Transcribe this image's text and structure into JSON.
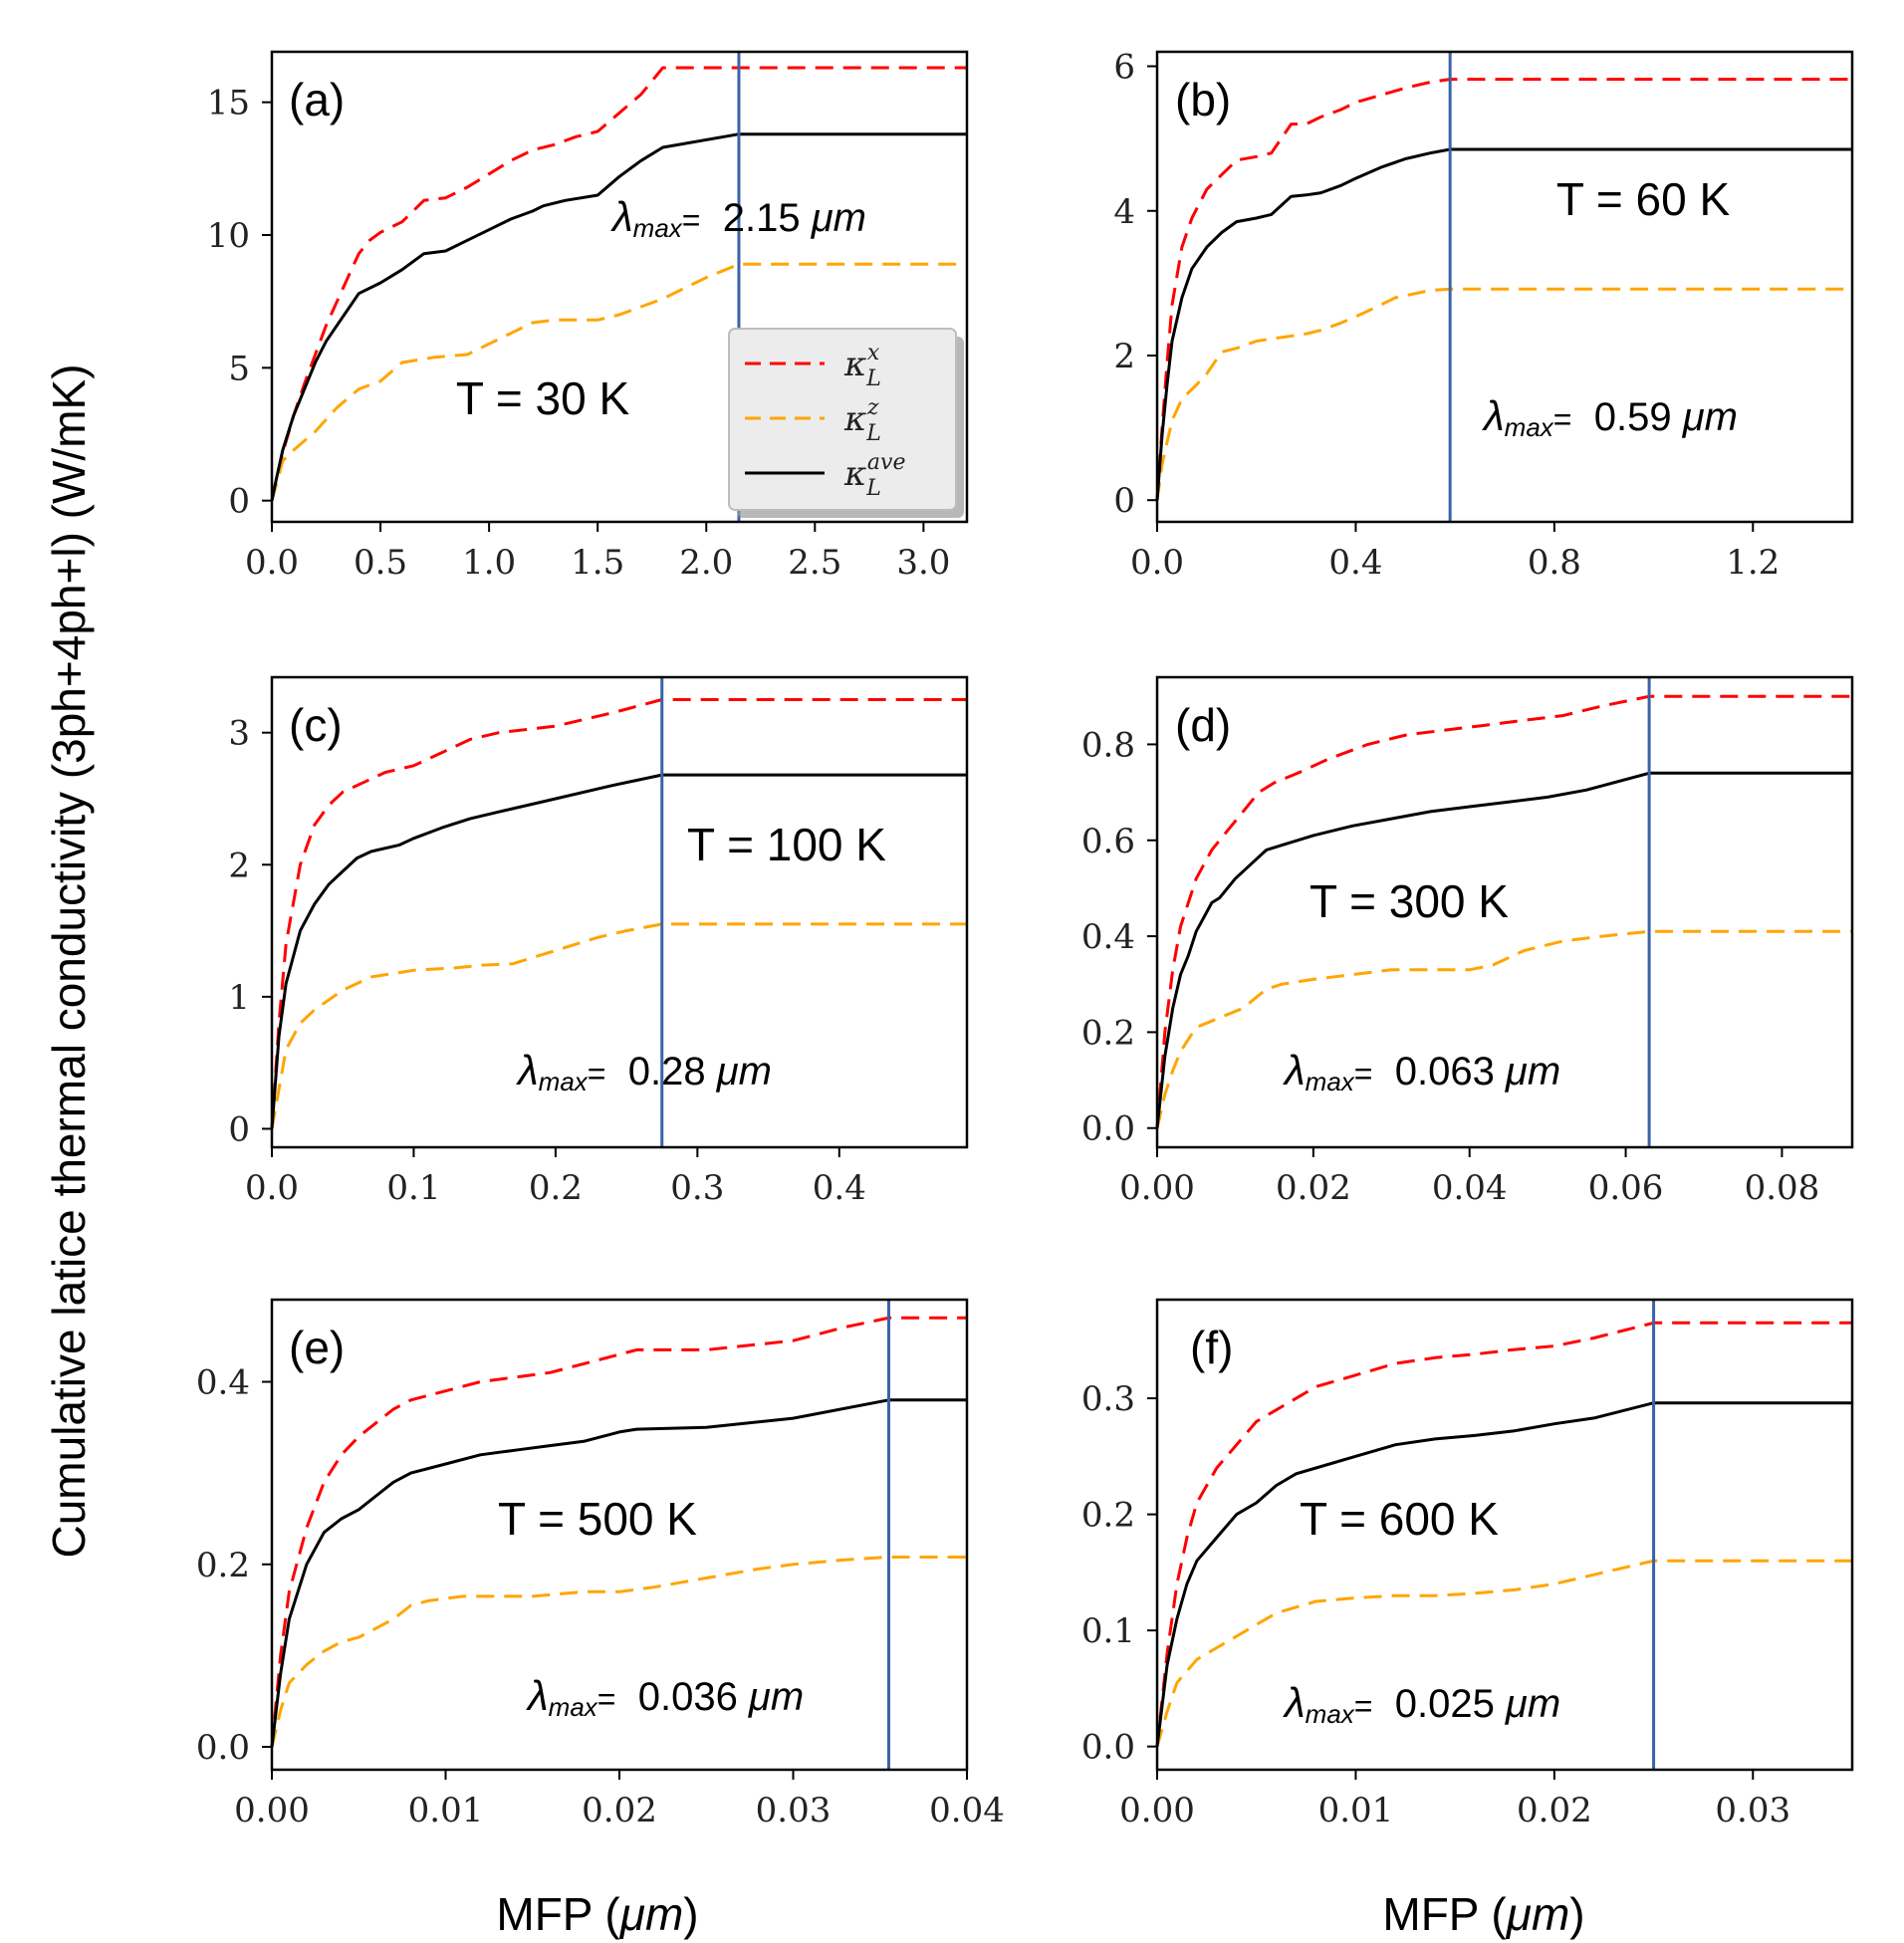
{
  "figure": {
    "ylabel": "Cumulative latice thermal conductivity (3ph+4ph+l) (W/mK)",
    "xlabel_left": "MFP (μm)",
    "xlabel_right": "MFP (μm)",
    "lambda_label": "λmax="
  },
  "legend": {
    "entries": [
      {
        "label": "κLx",
        "color": "#ff0000",
        "style": "dashed"
      },
      {
        "label": "κLz",
        "color": "#ffa500",
        "style": "dashed"
      },
      {
        "label": "κLave",
        "color": "#000000",
        "style": "solid"
      }
    ]
  },
  "colors": {
    "kx": "#ff0000",
    "kz": "#ffa500",
    "kave": "#000000",
    "vline": "#3a63a8"
  },
  "chart_data": [
    {
      "type": "line",
      "panel": "(a)",
      "temperature": "T = 30 K",
      "lambda_max": "2.15 μm",
      "vline_x": 2.15,
      "xlim": [
        0,
        3.2
      ],
      "ylim": [
        -0.8,
        16.9
      ],
      "xticks": [
        0,
        0.5,
        1,
        1.5,
        2,
        2.5,
        3
      ],
      "xtick_labels": [
        "0.0",
        "0.5",
        "1.0",
        "1.5",
        "2.0",
        "2.5",
        "3.0"
      ],
      "yticks": [
        0,
        5,
        10,
        15
      ],
      "ytick_labels": [
        "0",
        "5",
        "10",
        "15"
      ],
      "series": [
        {
          "name": "κLx",
          "x": [
            0,
            0.02,
            0.05,
            0.1,
            0.15,
            0.2,
            0.25,
            0.3,
            0.35,
            0.4,
            0.45,
            0.5,
            0.6,
            0.7,
            0.8,
            0.9,
            1.0,
            1.1,
            1.2,
            1.3,
            1.4,
            1.5,
            1.6,
            1.7,
            1.8,
            2.15,
            3.2
          ],
          "y": [
            0,
            0.8,
            1.8,
            3.2,
            4.4,
            5.5,
            6.6,
            7.5,
            8.4,
            9.3,
            9.8,
            10.1,
            10.5,
            11.3,
            11.4,
            11.8,
            12.3,
            12.8,
            13.2,
            13.4,
            13.7,
            13.9,
            14.6,
            15.3,
            16.3,
            16.3,
            16.3
          ]
        },
        {
          "name": "κLz",
          "x": [
            0,
            0.02,
            0.05,
            0.1,
            0.2,
            0.3,
            0.4,
            0.5,
            0.6,
            0.75,
            0.9,
            1.0,
            1.1,
            1.2,
            1.3,
            1.5,
            1.6,
            1.7,
            1.8,
            1.9,
            2.0,
            2.15,
            3.2
          ],
          "y": [
            0,
            0.6,
            1.5,
            1.9,
            2.6,
            3.5,
            4.2,
            4.5,
            5.2,
            5.4,
            5.5,
            5.9,
            6.3,
            6.7,
            6.8,
            6.8,
            7.0,
            7.3,
            7.6,
            8.0,
            8.4,
            8.9,
            8.9
          ]
        },
        {
          "name": "κLave",
          "x": [
            0,
            0.02,
            0.05,
            0.1,
            0.15,
            0.2,
            0.25,
            0.3,
            0.4,
            0.5,
            0.6,
            0.7,
            0.8,
            0.9,
            1.0,
            1.1,
            1.2,
            1.25,
            1.35,
            1.5,
            1.6,
            1.7,
            1.8,
            2.15,
            3.2
          ],
          "y": [
            0,
            0.8,
            1.9,
            3.2,
            4.2,
            5.2,
            6.0,
            6.6,
            7.8,
            8.2,
            8.7,
            9.3,
            9.4,
            9.8,
            10.2,
            10.6,
            10.9,
            11.1,
            11.3,
            11.5,
            12.2,
            12.8,
            13.3,
            13.8,
            13.8
          ]
        }
      ]
    },
    {
      "type": "line",
      "panel": "(b)",
      "temperature": "T = 60 K",
      "lambda_max": "0.59 μm",
      "vline_x": 0.59,
      "xlim": [
        0,
        1.4
      ],
      "ylim": [
        -0.3,
        6.2
      ],
      "xticks": [
        0,
        0.4,
        0.8,
        1.2
      ],
      "xtick_labels": [
        "0.0",
        "0.4",
        "0.8",
        "1.2"
      ],
      "yticks": [
        0,
        2,
        4,
        6
      ],
      "ytick_labels": [
        "0",
        "2",
        "4",
        "6"
      ],
      "series": [
        {
          "name": "κLx",
          "x": [
            0,
            0.01,
            0.02,
            0.03,
            0.05,
            0.07,
            0.1,
            0.13,
            0.16,
            0.2,
            0.23,
            0.27,
            0.3,
            0.33,
            0.37,
            0.4,
            0.45,
            0.5,
            0.55,
            0.59,
            1.4
          ],
          "y": [
            0,
            1.0,
            1.9,
            2.7,
            3.5,
            3.9,
            4.3,
            4.5,
            4.7,
            4.75,
            4.8,
            5.2,
            5.2,
            5.3,
            5.4,
            5.5,
            5.6,
            5.7,
            5.78,
            5.82,
            5.82
          ]
        },
        {
          "name": "κLz",
          "x": [
            0,
            0.01,
            0.02,
            0.03,
            0.05,
            0.08,
            0.1,
            0.13,
            0.16,
            0.2,
            0.25,
            0.3,
            0.33,
            0.37,
            0.42,
            0.48,
            0.55,
            0.59,
            1.4
          ],
          "y": [
            0,
            0.5,
            0.8,
            1.1,
            1.4,
            1.6,
            1.75,
            2.05,
            2.1,
            2.2,
            2.25,
            2.3,
            2.35,
            2.45,
            2.6,
            2.8,
            2.9,
            2.92,
            2.92
          ]
        },
        {
          "name": "κLave",
          "x": [
            0,
            0.01,
            0.02,
            0.03,
            0.05,
            0.07,
            0.1,
            0.13,
            0.16,
            0.2,
            0.23,
            0.27,
            0.3,
            0.33,
            0.37,
            0.4,
            0.45,
            0.5,
            0.55,
            0.59,
            1.4
          ],
          "y": [
            0,
            0.9,
            1.6,
            2.2,
            2.8,
            3.2,
            3.5,
            3.7,
            3.85,
            3.9,
            3.95,
            4.2,
            4.22,
            4.25,
            4.35,
            4.45,
            4.6,
            4.72,
            4.8,
            4.85,
            4.85
          ]
        }
      ]
    },
    {
      "type": "line",
      "panel": "(c)",
      "temperature": "T = 100 K",
      "lambda_max": "0.28 μm",
      "vline_x": 0.275,
      "xlim": [
        0,
        0.49
      ],
      "ylim": [
        -0.14,
        3.42
      ],
      "xticks": [
        0,
        0.1,
        0.2,
        0.3,
        0.4
      ],
      "xtick_labels": [
        "0.0",
        "0.1",
        "0.2",
        "0.3",
        "0.4"
      ],
      "yticks": [
        0,
        1,
        2,
        3
      ],
      "ytick_labels": [
        "0",
        "1",
        "2",
        "3"
      ],
      "series": [
        {
          "name": "κLx",
          "x": [
            0,
            0.005,
            0.01,
            0.02,
            0.03,
            0.04,
            0.05,
            0.06,
            0.08,
            0.1,
            0.12,
            0.14,
            0.16,
            0.2,
            0.24,
            0.275,
            0.49
          ],
          "y": [
            0,
            0.8,
            1.4,
            2.0,
            2.3,
            2.45,
            2.55,
            2.6,
            2.7,
            2.75,
            2.85,
            2.95,
            3.0,
            3.05,
            3.15,
            3.25,
            3.25
          ]
        },
        {
          "name": "κLz",
          "x": [
            0,
            0.005,
            0.01,
            0.02,
            0.03,
            0.05,
            0.07,
            0.1,
            0.13,
            0.15,
            0.17,
            0.2,
            0.23,
            0.25,
            0.275,
            0.49
          ],
          "y": [
            0,
            0.3,
            0.6,
            0.8,
            0.9,
            1.05,
            1.15,
            1.2,
            1.22,
            1.24,
            1.25,
            1.35,
            1.45,
            1.5,
            1.55,
            1.55
          ]
        },
        {
          "name": "κLave",
          "x": [
            0,
            0.005,
            0.01,
            0.02,
            0.03,
            0.04,
            0.05,
            0.06,
            0.07,
            0.09,
            0.1,
            0.12,
            0.14,
            0.16,
            0.2,
            0.24,
            0.275,
            0.49
          ],
          "y": [
            0,
            0.7,
            1.1,
            1.5,
            1.7,
            1.85,
            1.95,
            2.05,
            2.1,
            2.15,
            2.2,
            2.28,
            2.35,
            2.4,
            2.5,
            2.6,
            2.68,
            2.68
          ]
        }
      ]
    },
    {
      "type": "line",
      "panel": "(d)",
      "temperature": "T = 300 K",
      "lambda_max": "0.063 μm",
      "vline_x": 0.063,
      "xlim": [
        0,
        0.089
      ],
      "ylim": [
        -0.04,
        0.94
      ],
      "xticks": [
        0,
        0.02,
        0.04,
        0.06,
        0.08
      ],
      "xtick_labels": [
        "0.00",
        "0.02",
        "0.04",
        "0.06",
        "0.08"
      ],
      "yticks": [
        0,
        0.2,
        0.4,
        0.6,
        0.8
      ],
      "ytick_labels": [
        "0.0",
        "0.2",
        "0.4",
        "0.6",
        "0.8"
      ],
      "series": [
        {
          "name": "κLx",
          "x": [
            0,
            0.001,
            0.002,
            0.003,
            0.005,
            0.007,
            0.009,
            0.011,
            0.013,
            0.015,
            0.018,
            0.022,
            0.027,
            0.032,
            0.037,
            0.042,
            0.047,
            0.052,
            0.057,
            0.063,
            0.089
          ],
          "y": [
            0,
            0.2,
            0.33,
            0.42,
            0.52,
            0.58,
            0.62,
            0.66,
            0.7,
            0.72,
            0.74,
            0.77,
            0.8,
            0.82,
            0.83,
            0.84,
            0.85,
            0.86,
            0.88,
            0.9,
            0.9
          ]
        },
        {
          "name": "κLz",
          "x": [
            0,
            0.001,
            0.002,
            0.003,
            0.005,
            0.008,
            0.011,
            0.014,
            0.016,
            0.02,
            0.025,
            0.03,
            0.035,
            0.04,
            0.043,
            0.047,
            0.052,
            0.057,
            0.063,
            0.089
          ],
          "y": [
            0,
            0.07,
            0.12,
            0.16,
            0.21,
            0.23,
            0.25,
            0.29,
            0.3,
            0.31,
            0.32,
            0.33,
            0.33,
            0.33,
            0.34,
            0.37,
            0.39,
            0.4,
            0.41,
            0.41
          ]
        },
        {
          "name": "κLave",
          "x": [
            0,
            0.001,
            0.002,
            0.003,
            0.004,
            0.005,
            0.006,
            0.007,
            0.008,
            0.01,
            0.012,
            0.014,
            0.016,
            0.02,
            0.025,
            0.03,
            0.035,
            0.04,
            0.045,
            0.05,
            0.055,
            0.063,
            0.089
          ],
          "y": [
            0,
            0.15,
            0.25,
            0.32,
            0.36,
            0.41,
            0.44,
            0.47,
            0.48,
            0.52,
            0.55,
            0.58,
            0.59,
            0.61,
            0.63,
            0.645,
            0.66,
            0.67,
            0.68,
            0.69,
            0.705,
            0.74,
            0.74
          ]
        }
      ]
    },
    {
      "type": "line",
      "panel": "(e)",
      "temperature": "T = 500 K",
      "lambda_max": "0.036 μm",
      "vline_x": 0.0355,
      "xlim": [
        0,
        0.04
      ],
      "ylim": [
        -0.025,
        0.49
      ],
      "xticks": [
        0,
        0.01,
        0.02,
        0.03,
        0.04
      ],
      "xtick_labels": [
        "0.00",
        "0.01",
        "0.02",
        "0.03",
        "0.04"
      ],
      "yticks": [
        0,
        0.2,
        0.4
      ],
      "ytick_labels": [
        "0.0",
        "0.2",
        "0.4"
      ],
      "series": [
        {
          "name": "κLx",
          "x": [
            0,
            0.0005,
            0.001,
            0.002,
            0.003,
            0.004,
            0.005,
            0.006,
            0.007,
            0.008,
            0.01,
            0.012,
            0.014,
            0.016,
            0.018,
            0.02,
            0.021,
            0.025,
            0.03,
            0.033,
            0.0355,
            0.04
          ],
          "y": [
            0,
            0.1,
            0.17,
            0.24,
            0.29,
            0.32,
            0.34,
            0.355,
            0.37,
            0.38,
            0.39,
            0.4,
            0.405,
            0.41,
            0.42,
            0.43,
            0.435,
            0.435,
            0.445,
            0.46,
            0.47,
            0.47
          ]
        },
        {
          "name": "κLz",
          "x": [
            0,
            0.0005,
            0.001,
            0.002,
            0.003,
            0.004,
            0.005,
            0.006,
            0.007,
            0.008,
            0.009,
            0.011,
            0.013,
            0.015,
            0.018,
            0.02,
            0.022,
            0.025,
            0.028,
            0.03,
            0.033,
            0.0355,
            0.04
          ],
          "y": [
            0,
            0.04,
            0.07,
            0.09,
            0.105,
            0.115,
            0.12,
            0.13,
            0.14,
            0.155,
            0.16,
            0.165,
            0.165,
            0.165,
            0.17,
            0.17,
            0.175,
            0.185,
            0.195,
            0.2,
            0.205,
            0.208,
            0.208
          ]
        },
        {
          "name": "κLave",
          "x": [
            0,
            0.0005,
            0.001,
            0.002,
            0.003,
            0.004,
            0.005,
            0.006,
            0.007,
            0.008,
            0.01,
            0.012,
            0.014,
            0.016,
            0.018,
            0.02,
            0.021,
            0.025,
            0.03,
            0.0355,
            0.04
          ],
          "y": [
            0,
            0.08,
            0.14,
            0.2,
            0.235,
            0.25,
            0.26,
            0.275,
            0.29,
            0.3,
            0.31,
            0.32,
            0.325,
            0.33,
            0.335,
            0.345,
            0.348,
            0.35,
            0.36,
            0.38,
            0.38
          ]
        }
      ]
    },
    {
      "type": "line",
      "panel": "(f)",
      "temperature": "T = 600 K",
      "lambda_max": "0.025 μm",
      "vline_x": 0.025,
      "xlim": [
        0,
        0.035
      ],
      "ylim": [
        -0.02,
        0.385
      ],
      "xticks": [
        0,
        0.01,
        0.02,
        0.03
      ],
      "xtick_labels": [
        "0.00",
        "0.01",
        "0.02",
        "0.03"
      ],
      "yticks": [
        0,
        0.1,
        0.2,
        0.3
      ],
      "ytick_labels": [
        "0.0",
        "0.1",
        "0.2",
        "0.3"
      ],
      "series": [
        {
          "name": "κLx",
          "x": [
            0,
            0.0005,
            0.001,
            0.0015,
            0.002,
            0.003,
            0.004,
            0.005,
            0.006,
            0.007,
            0.008,
            0.01,
            0.012,
            0.014,
            0.016,
            0.018,
            0.02,
            0.022,
            0.025,
            0.035
          ],
          "y": [
            0,
            0.08,
            0.14,
            0.18,
            0.21,
            0.24,
            0.26,
            0.28,
            0.29,
            0.3,
            0.31,
            0.32,
            0.33,
            0.335,
            0.338,
            0.342,
            0.345,
            0.352,
            0.365,
            0.365
          ]
        },
        {
          "name": "κLz",
          "x": [
            0,
            0.0005,
            0.001,
            0.002,
            0.003,
            0.004,
            0.005,
            0.006,
            0.007,
            0.008,
            0.01,
            0.012,
            0.014,
            0.016,
            0.018,
            0.02,
            0.022,
            0.025,
            0.035
          ],
          "y": [
            0,
            0.03,
            0.055,
            0.075,
            0.085,
            0.095,
            0.105,
            0.115,
            0.12,
            0.125,
            0.128,
            0.13,
            0.13,
            0.132,
            0.135,
            0.14,
            0.148,
            0.16,
            0.16
          ]
        },
        {
          "name": "κLave",
          "x": [
            0,
            0.0005,
            0.001,
            0.0015,
            0.002,
            0.003,
            0.004,
            0.005,
            0.006,
            0.007,
            0.008,
            0.01,
            0.012,
            0.014,
            0.016,
            0.018,
            0.02,
            0.022,
            0.025,
            0.035
          ],
          "y": [
            0,
            0.07,
            0.11,
            0.14,
            0.16,
            0.18,
            0.2,
            0.21,
            0.225,
            0.235,
            0.24,
            0.25,
            0.26,
            0.265,
            0.268,
            0.272,
            0.278,
            0.283,
            0.296,
            0.296
          ]
        }
      ]
    }
  ]
}
